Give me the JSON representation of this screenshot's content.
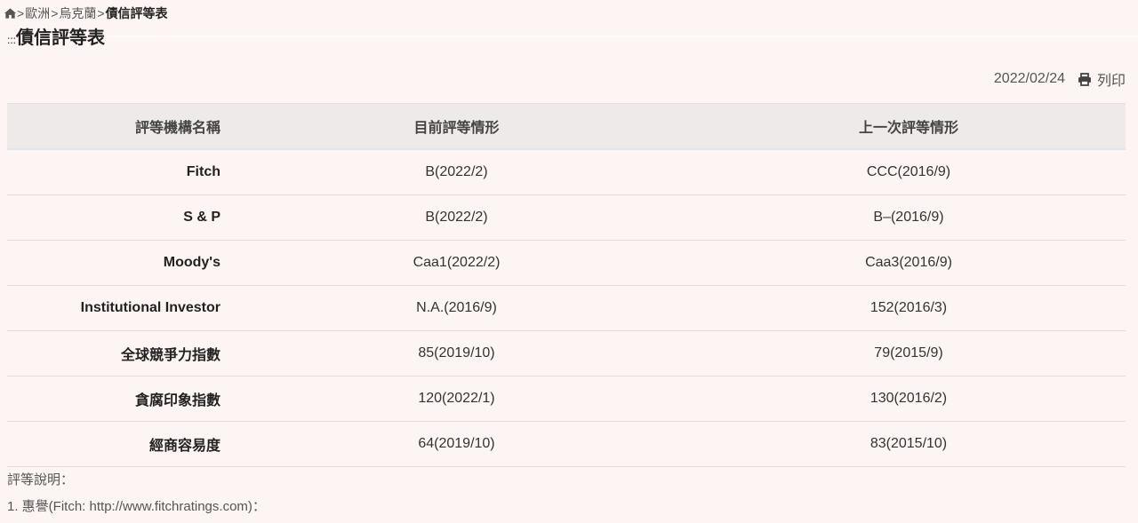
{
  "breadcrumb": {
    "items": [
      "歐洲",
      "烏克蘭"
    ],
    "current": "債信評等表",
    "separator": ">",
    "home_icon": "home-icon"
  },
  "page_title": "債信評等表",
  "title_prefix": ":::",
  "date": "2022/02/24",
  "print_label": "列印",
  "table": {
    "headers": [
      "評等機構名稱",
      "目前評等情形",
      "上一次評等情形"
    ],
    "rows": [
      [
        "Fitch",
        "B(2022/2)",
        "CCC(2016/9)"
      ],
      [
        "S & P",
        "B(2022/2)",
        "B–(2016/9)"
      ],
      [
        "Moody's",
        "Caa1(2022/2)",
        "Caa3(2016/9)"
      ],
      [
        "Institutional Investor",
        "N.A.(2016/9)",
        "152(2016/3)"
      ],
      [
        "全球競爭力指數",
        "85(2019/10)",
        "79(2015/9)"
      ],
      [
        "貪腐印象指數",
        "120(2022/1)",
        "130(2016/2)"
      ],
      [
        "經商容易度",
        "64(2019/10)",
        "83(2015/10)"
      ]
    ]
  },
  "notes": {
    "heading": "評等說明：",
    "items": [
      "1. 惠譽(Fitch: http://www.fitchratings.com)："
    ]
  }
}
